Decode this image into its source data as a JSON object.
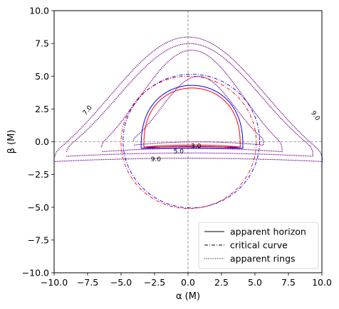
{
  "chart_data": {
    "type": "line",
    "xlabel": "α (M)",
    "ylabel": "β (M)",
    "xlim": [
      -10,
      10
    ],
    "ylim": [
      -10,
      10
    ],
    "xticks": [
      "−10.0",
      "−7.5",
      "−5.0",
      "−2.5",
      "0.0",
      "2.5",
      "5.0",
      "7.5",
      "10.0"
    ],
    "yticks": [
      "−10.0",
      "−7.5",
      "−5.0",
      "−2.5",
      "0.0",
      "2.5",
      "5.0",
      "7.5",
      "10.0"
    ],
    "xtick_values": [
      -10,
      -7.5,
      -5,
      -2.5,
      0,
      2.5,
      5,
      7.5,
      10
    ],
    "ytick_values": [
      -10,
      -7.5,
      -5,
      -2.5,
      0,
      2.5,
      5,
      7.5,
      10
    ],
    "colors": {
      "blue": "#0000ff",
      "red": "#ff0000",
      "guide": "#555555"
    },
    "legend": {
      "position": "lower-right",
      "entries": [
        {
          "label": "apparent horizon",
          "style": "solid"
        },
        {
          "label": "critical curve",
          "style": "dashdot"
        },
        {
          "label": "apparent rings",
          "style": "dotted"
        }
      ]
    },
    "contour_labels": [
      {
        "text": "3.0",
        "x": 0.6,
        "y": -0.5
      },
      {
        "text": "5.0",
        "x": -0.7,
        "y": -0.9
      },
      {
        "text": "9.0",
        "x": -2.4,
        "y": -1.5
      },
      {
        "text": "7.0",
        "x": -7.4,
        "y": 2.3
      },
      {
        "text": "9.0",
        "x": 9.4,
        "y": 1.9
      }
    ],
    "horizons": [
      {
        "color": "blue",
        "apex": 4.3,
        "xmin": -3.5,
        "xmax": 4.1,
        "base": -0.5
      },
      {
        "color": "red",
        "apex": 4.1,
        "xmin": -3.3,
        "xmax": 3.9,
        "base": -0.4
      }
    ],
    "critical_curves": [
      {
        "color": "blue",
        "cx": 0.25,
        "cy": 0.05,
        "r": 5.1
      },
      {
        "color": "red",
        "cx": 0.05,
        "cy": -0.05,
        "r": 5.05
      }
    ],
    "rings": [
      {
        "level": 3,
        "top": 5.0,
        "xleft": -4.1,
        "xright": 5.6,
        "ybase": -0.25
      },
      {
        "level": 5,
        "top": 7.0,
        "xleft": -6.5,
        "xright": 7.0,
        "ybase": -0.75
      },
      {
        "level": 7,
        "top": 7.5,
        "xleft": -9.1,
        "xright": 9.3,
        "ybase": -1.1
      },
      {
        "level": 9,
        "top": 8.0,
        "xleft": -10.0,
        "xright": 10.0,
        "ybase": -1.5
      }
    ]
  }
}
